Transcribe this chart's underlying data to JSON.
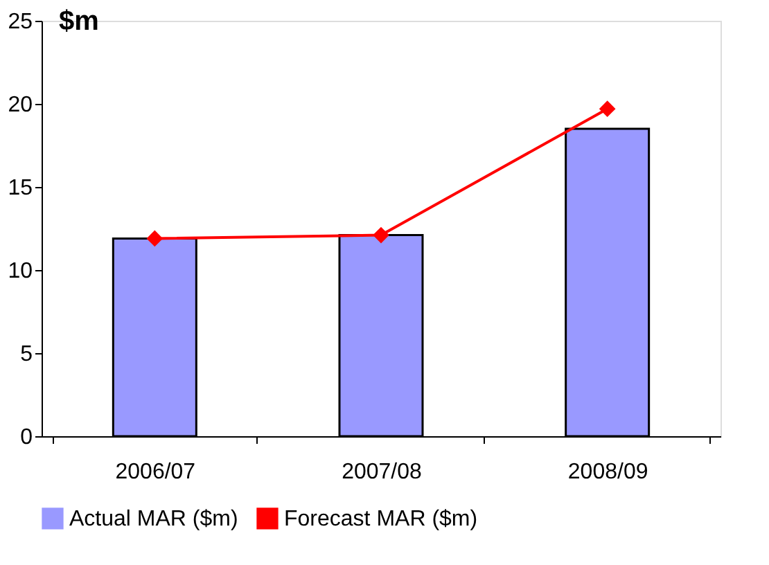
{
  "chart_data": {
    "type": "bar",
    "ylabel": "$m",
    "categories": [
      "2006/07",
      "2007/08",
      "2008/09"
    ],
    "series": [
      {
        "name": "Actual MAR ($m)",
        "color": "#9999ff",
        "values": [
          11.9,
          12.1,
          18.5
        ]
      },
      {
        "name": "Forecast MAR ($m)",
        "type": "line",
        "color": "#ff0000",
        "values": [
          11.9,
          12.1,
          19.7
        ]
      }
    ],
    "ylim": [
      0,
      25
    ],
    "yticks": [
      0,
      5,
      10,
      15,
      20,
      25
    ],
    "grid": false,
    "legend": "bottom",
    "marker": "diamond",
    "line_style": "solid"
  }
}
